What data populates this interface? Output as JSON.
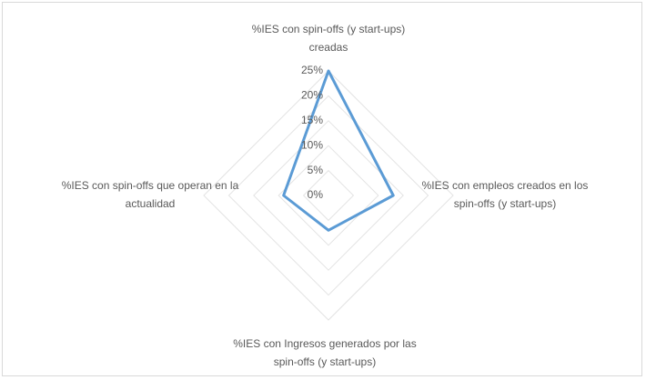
{
  "chart_data": {
    "type": "radar",
    "categories": [
      "%IES con spin-offs (y start-ups) creadas",
      "%IES con empleos creados en los spin-offs (y start-ups)",
      "%IES con Ingresos generados por las spin-offs (y start-ups)",
      "%IES con spin-offs que operan en la actualidad"
    ],
    "values": [
      25,
      13,
      7,
      9
    ],
    "color": "#5b9bd5",
    "ylim": [
      0,
      25
    ],
    "yticks": [
      {
        "value": 0,
        "label": "0%"
      },
      {
        "value": 5,
        "label": "5%"
      },
      {
        "value": 10,
        "label": "10%"
      },
      {
        "value": 15,
        "label": "15%"
      },
      {
        "value": 20,
        "label": "20%"
      },
      {
        "value": 25,
        "label": "25%"
      }
    ],
    "grid": true
  }
}
